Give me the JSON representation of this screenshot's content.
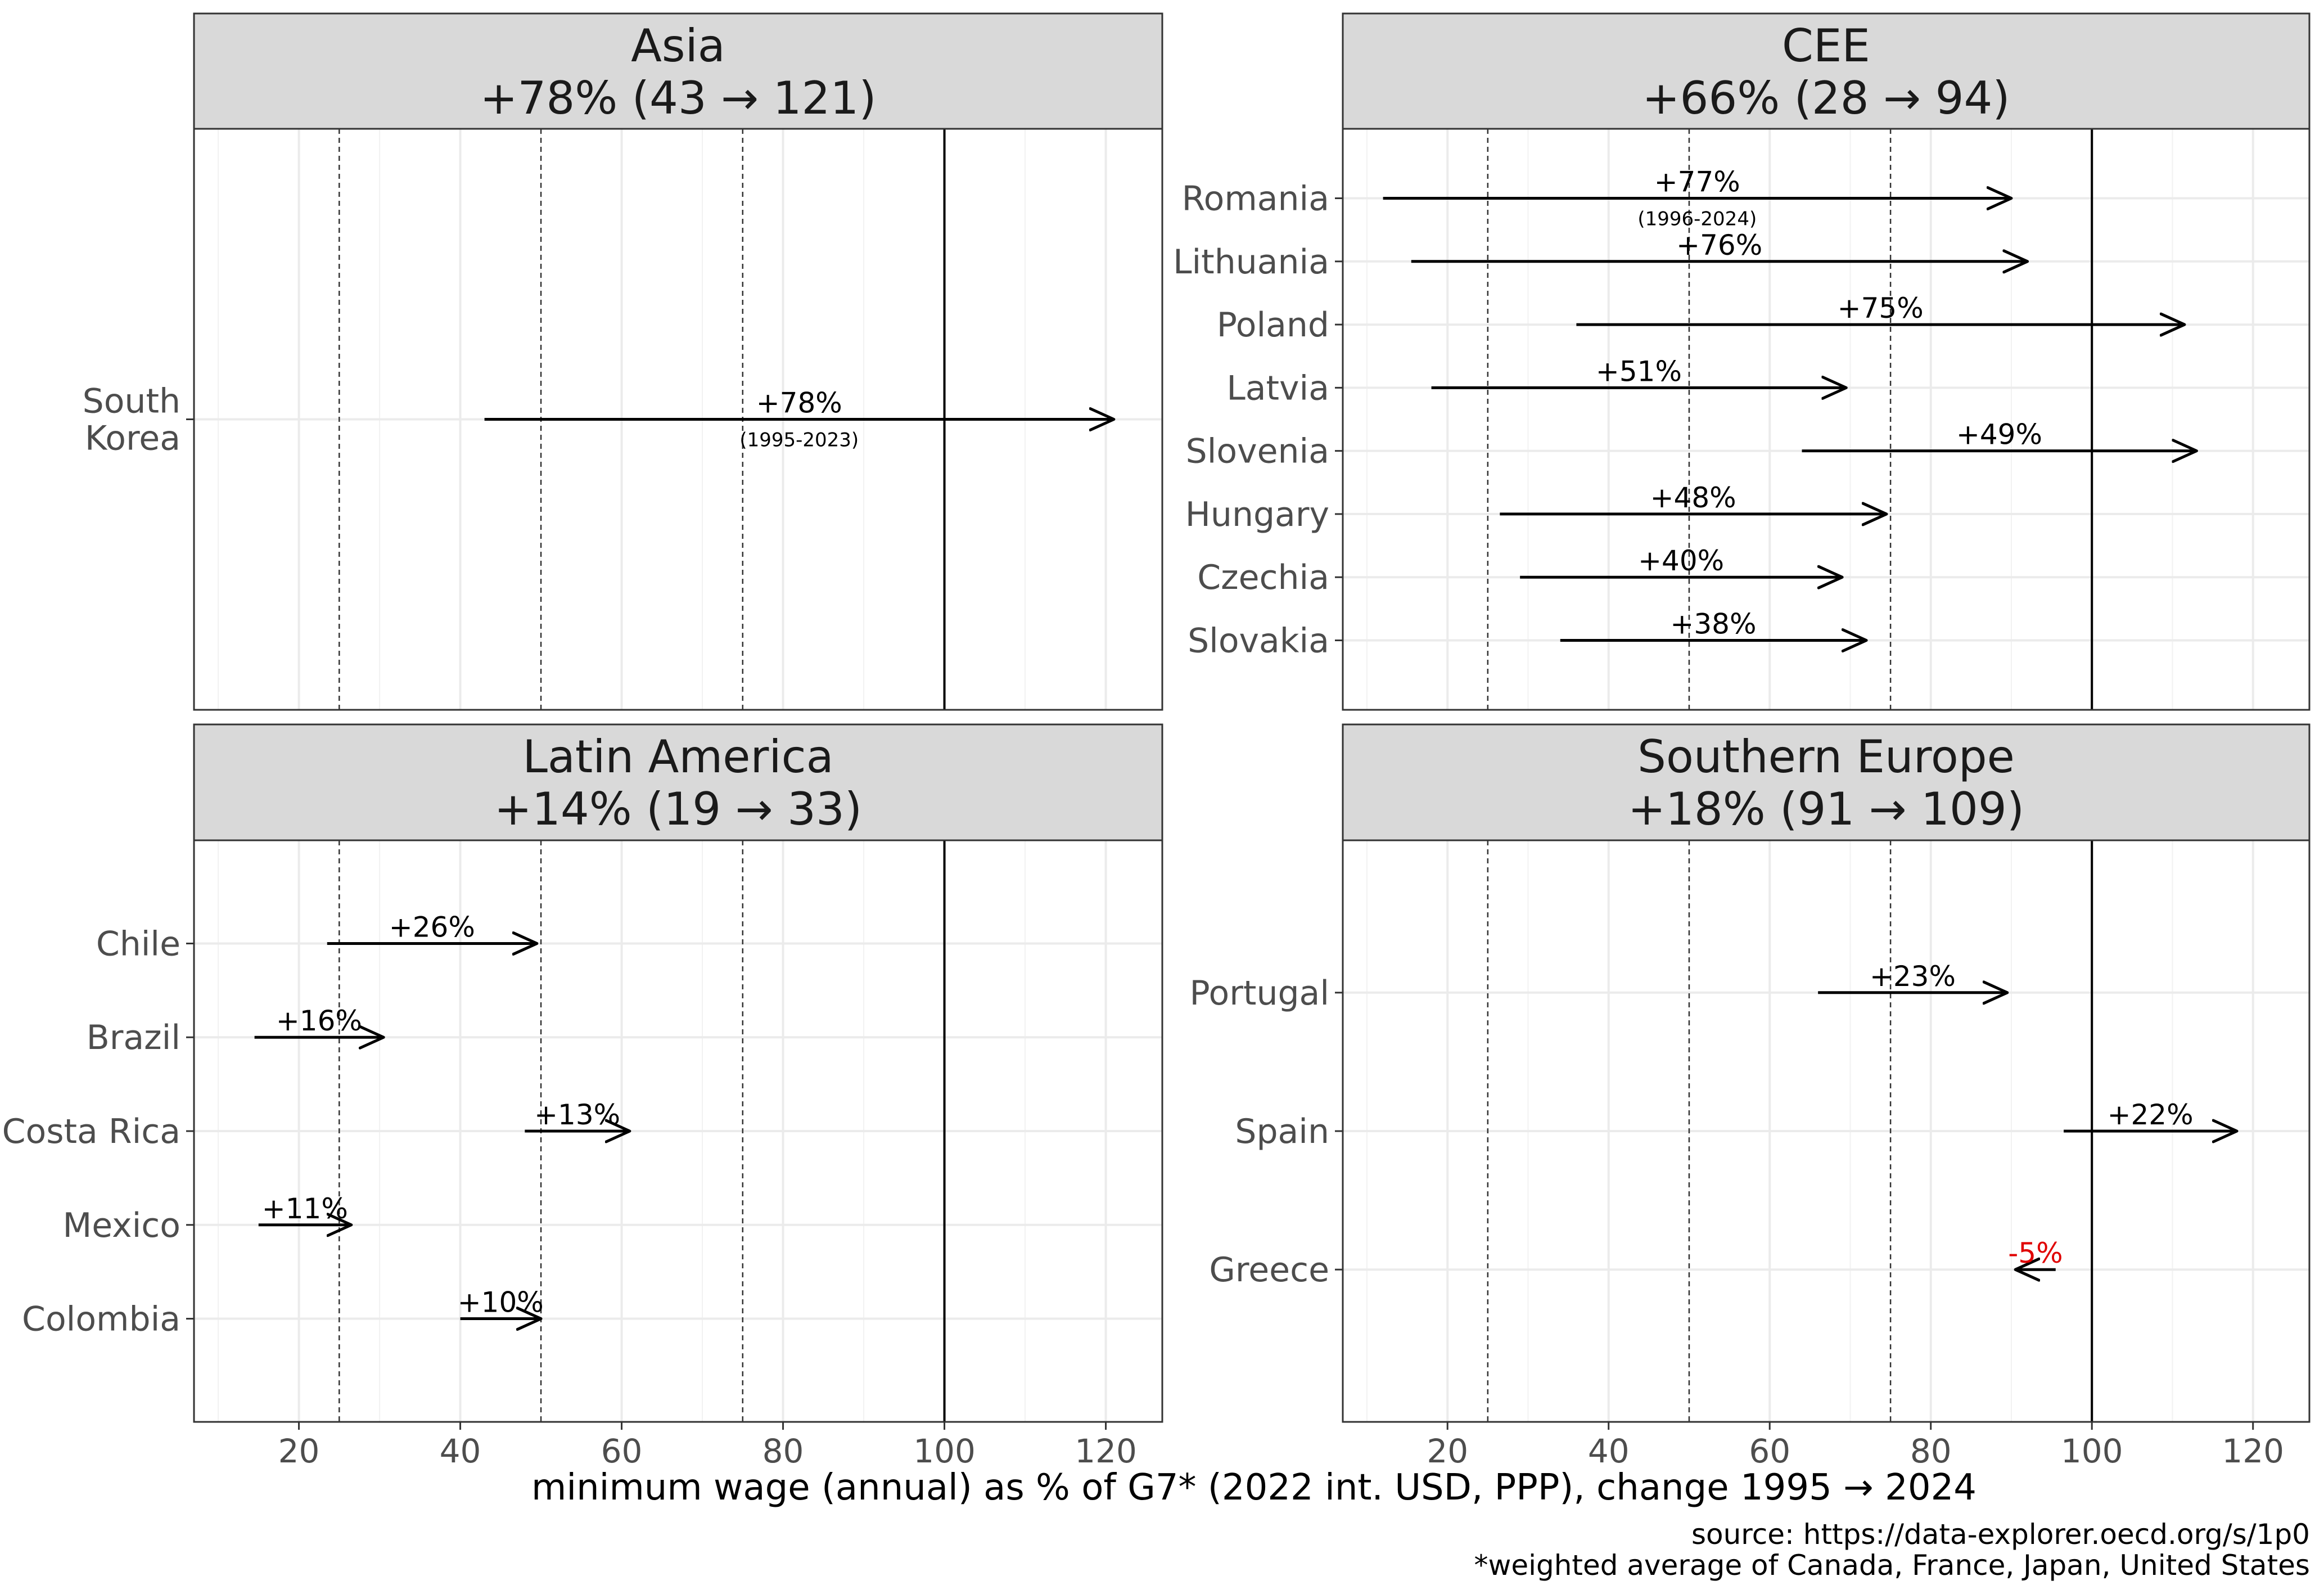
{
  "chart_data": {
    "type": "arrow",
    "xlabel": "minimum wage (annual) as % of G7* (2022 int. USD, PPP), change 1995 → 2024",
    "xlim": [
      7,
      127
    ],
    "xticks": [
      20,
      40,
      60,
      80,
      100,
      120
    ],
    "xtick_labels": [
      "20",
      "40",
      "60",
      "80",
      "100",
      "120"
    ],
    "reference_lines": {
      "dashed": [
        25,
        50,
        75
      ],
      "solid": [
        100
      ]
    },
    "source": "source: https://data-explorer.oecd.org/s/1p0",
    "footnote": "*weighted average of Canada, France, Japan, United States",
    "colors": {
      "positive": "#000000",
      "negative": "#e00000",
      "strip": "#d9d9d9",
      "grid": "#ebebeb"
    },
    "panels": [
      {
        "title_line1": "Asia",
        "title_line2": "+78% (43 → 121)",
        "countries": [
          {
            "label": "South Korea",
            "label_lines": [
              "South",
              "Korea"
            ],
            "start": 43,
            "end": 121,
            "change": "+78%",
            "note": "(1995-2023)"
          }
        ]
      },
      {
        "title_line1": "CEE",
        "title_line2": "+66% (28 → 94)",
        "countries": [
          {
            "label": "Romania",
            "start": 12,
            "end": 90,
            "change": "+77%",
            "note": "(1996-2024)"
          },
          {
            "label": "Lithuania",
            "start": 15.5,
            "end": 92,
            "change": "+76%"
          },
          {
            "label": "Poland",
            "start": 36,
            "end": 111.5,
            "change": "+75%"
          },
          {
            "label": "Latvia",
            "start": 18,
            "end": 69.5,
            "change": "+51%"
          },
          {
            "label": "Slovenia",
            "start": 64,
            "end": 113,
            "change": "+49%"
          },
          {
            "label": "Hungary",
            "start": 26.5,
            "end": 74.5,
            "change": "+48%"
          },
          {
            "label": "Czechia",
            "start": 29,
            "end": 69,
            "change": "+40%"
          },
          {
            "label": "Slovakia",
            "start": 34,
            "end": 72,
            "change": "+38%"
          }
        ]
      },
      {
        "title_line1": "Latin America",
        "title_line2": "+14% (19 → 33)",
        "countries": [
          {
            "label": "Chile",
            "start": 23.5,
            "end": 49.5,
            "change": "+26%"
          },
          {
            "label": "Brazil",
            "start": 14.5,
            "end": 30.5,
            "change": "+16%"
          },
          {
            "label": "Costa Rica",
            "start": 48,
            "end": 61,
            "change": "+13%"
          },
          {
            "label": "Mexico",
            "start": 15,
            "end": 26.5,
            "change": "+11%"
          },
          {
            "label": "Colombia",
            "start": 40,
            "end": 50,
            "change": "+10%"
          }
        ]
      },
      {
        "title_line1": "Southern Europe",
        "title_line2": "+18% (91 → 109)",
        "countries": [
          {
            "label": "Portugal",
            "start": 66,
            "end": 89.5,
            "change": "+23%"
          },
          {
            "label": "Spain",
            "start": 96.5,
            "end": 118,
            "change": "+22%"
          },
          {
            "label": "Greece",
            "start": 95.5,
            "end": 90.5,
            "change": "-5%"
          }
        ]
      }
    ]
  }
}
